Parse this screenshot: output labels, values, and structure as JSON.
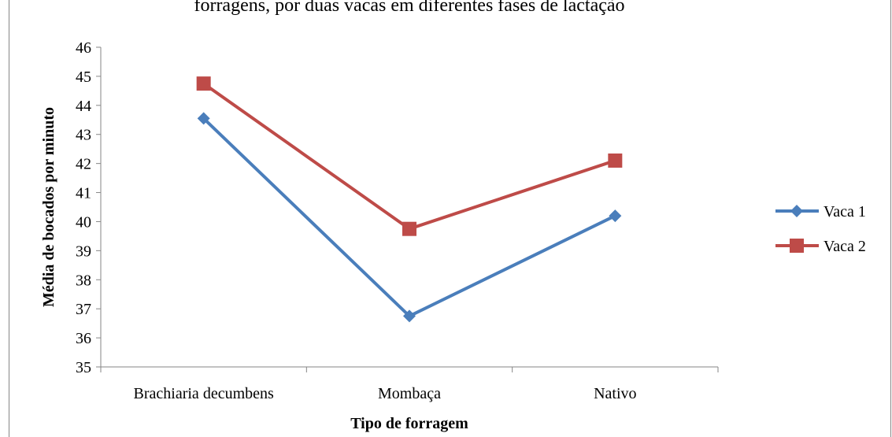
{
  "chart_data": {
    "type": "line",
    "title": "forragens, por duas vacas em diferentes fases de lactação",
    "xlabel": "Tipo de forragem",
    "ylabel": "Média de bocados por minuto",
    "categories": [
      "Brachiaria decumbens",
      "Mombaça",
      "Nativo"
    ],
    "ylim": [
      35,
      46
    ],
    "ytick_step": 1,
    "grid": false,
    "legend_position": "right",
    "series": [
      {
        "name": "Vaca 1",
        "values": [
          43.55,
          36.75,
          40.2
        ],
        "color": "#4a7ebb",
        "marker": "diamond"
      },
      {
        "name": "Vaca 2",
        "values": [
          44.75,
          39.75,
          42.1
        ],
        "color": "#be4b48",
        "marker": "square"
      }
    ]
  }
}
